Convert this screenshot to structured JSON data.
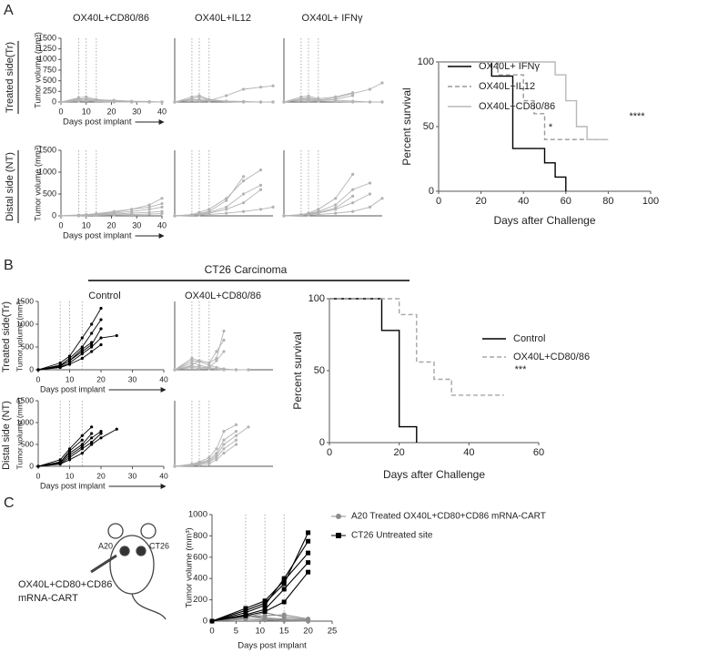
{
  "figure": {
    "panel_labels": [
      "A",
      "B",
      "C"
    ],
    "group_title": "CT26 Carcinoma",
    "row_labels": [
      "Treated side(Tr)",
      "Distal side (NT)",
      "Treated side(Tr)",
      "Distal side (NT)"
    ],
    "cartoon_labels": [
      "A20",
      "CT26",
      "OX40L+CD80+CD86",
      "mRNA-CART"
    ]
  },
  "chart_data": [
    {
      "type": "line",
      "title": "OX40L+CD80/86",
      "ylabel": "Tumor volume (mm³)",
      "xlabel": "Days post implant",
      "x": [
        0,
        7,
        10,
        14,
        21,
        28,
        35,
        40
      ],
      "xlim": [
        0,
        40
      ],
      "ylim": [
        0,
        1500
      ],
      "xticks": [
        0,
        10,
        20,
        30,
        40
      ],
      "yticks": [
        0,
        250,
        500,
        750,
        1000,
        1250,
        1500
      ],
      "vlines": [
        7,
        10,
        14
      ],
      "series": [
        {
          "color": "#b3b3b3",
          "marker": "circle",
          "values": [
            [
              0,
              60,
              80,
              50,
              40,
              20,
              10,
              0
            ],
            [
              0,
              100,
              120,
              60,
              30,
              10,
              0,
              0
            ],
            [
              0,
              40,
              50,
              30,
              20,
              10,
              0,
              0
            ],
            [
              0,
              80,
              70,
              40,
              20,
              0,
              0,
              0
            ],
            [
              0,
              20,
              30,
              10,
              0,
              0,
              0,
              0
            ]
          ]
        }
      ]
    },
    {
      "type": "line",
      "title": "OX40L+IL12",
      "x": [
        0,
        7,
        10,
        14,
        21,
        28,
        35,
        40
      ],
      "xlim": [
        0,
        40
      ],
      "ylim": [
        0,
        1500
      ],
      "vlines": [
        7,
        10,
        14
      ],
      "series": [
        {
          "color": "#b3b3b3",
          "marker": "circle",
          "values": [
            [
              0,
              80,
              120,
              40,
              10,
              0,
              0,
              0
            ],
            [
              0,
              120,
              150,
              60,
              20,
              10,
              0,
              0
            ],
            [
              0,
              50,
              60,
              30,
              150,
              300,
              350,
              380
            ],
            [
              0,
              40,
              30,
              20,
              10,
              0,
              0,
              0
            ],
            [
              0,
              60,
              50,
              40,
              20,
              10,
              null,
              null
            ]
          ]
        }
      ]
    },
    {
      "type": "line",
      "title": "OX40L+ IFNγ",
      "x": [
        0,
        7,
        10,
        14,
        21,
        28,
        35,
        40
      ],
      "xlim": [
        0,
        40
      ],
      "ylim": [
        0,
        1500
      ],
      "vlines": [
        7,
        10,
        14
      ],
      "series": [
        {
          "color": "#b3b3b3",
          "marker": "circle",
          "values": [
            [
              0,
              60,
              80,
              40,
              100,
              200,
              300,
              450
            ],
            [
              0,
              120,
              140,
              80,
              120,
              220,
              null,
              null
            ],
            [
              0,
              40,
              30,
              20,
              10,
              0,
              0,
              0
            ],
            [
              0,
              80,
              100,
              60,
              40,
              20,
              0,
              0
            ],
            [
              0,
              50,
              60,
              30,
              60,
              150,
              null,
              null
            ]
          ]
        }
      ]
    },
    {
      "type": "line",
      "ylabel": "Tumor volume (mm³)",
      "xlabel": "Days post implant",
      "x": [
        0,
        7,
        10,
        14,
        21,
        28,
        35,
        40
      ],
      "xlim": [
        0,
        40
      ],
      "ylim": [
        0,
        1500
      ],
      "xticks": [
        0,
        10,
        20,
        30,
        40
      ],
      "yticks": [
        0,
        500,
        1000,
        1500
      ],
      "vlines": [
        7,
        10,
        14
      ],
      "series": [
        {
          "color": "#b3b3b3",
          "marker": "circle",
          "values": [
            [
              0,
              10,
              20,
              40,
              80,
              150,
              250,
              400
            ],
            [
              0,
              20,
              30,
              50,
              100,
              150,
              200,
              280
            ],
            [
              0,
              10,
              20,
              30,
              60,
              100,
              150,
              200
            ],
            [
              0,
              10,
              10,
              20,
              40,
              60,
              80,
              100
            ],
            [
              0,
              0,
              10,
              10,
              20,
              30,
              40,
              50
            ]
          ]
        }
      ]
    },
    {
      "type": "line",
      "x": [
        0,
        7,
        10,
        14,
        21,
        28,
        35,
        40
      ],
      "xlim": [
        0,
        40
      ],
      "ylim": [
        0,
        1500
      ],
      "vlines": [
        7,
        10,
        14
      ],
      "series": [
        {
          "color": "#b3b3b3",
          "marker": "circle",
          "values": [
            [
              0,
              20,
              50,
              100,
              350,
              900,
              null,
              null
            ],
            [
              0,
              30,
              80,
              150,
              400,
              800,
              1050,
              null
            ],
            [
              0,
              20,
              40,
              80,
              200,
              500,
              700,
              null
            ],
            [
              0,
              10,
              30,
              60,
              150,
              300,
              600,
              null
            ],
            [
              0,
              10,
              20,
              30,
              60,
              100,
              150,
              200
            ]
          ]
        }
      ]
    },
    {
      "type": "line",
      "x": [
        0,
        7,
        10,
        14,
        21,
        28,
        35,
        40
      ],
      "xlim": [
        0,
        40
      ],
      "ylim": [
        0,
        1500
      ],
      "vlines": [
        7,
        10,
        14
      ],
      "series": [
        {
          "color": "#b3b3b3",
          "marker": "circle",
          "values": [
            [
              0,
              30,
              60,
              150,
              400,
              950,
              null,
              null
            ],
            [
              0,
              20,
              50,
              100,
              250,
              600,
              750,
              null
            ],
            [
              0,
              20,
              40,
              80,
              180,
              450,
              null,
              null
            ],
            [
              0,
              10,
              30,
              60,
              150,
              300,
              500,
              null
            ],
            [
              0,
              10,
              20,
              30,
              60,
              100,
              200,
              400
            ]
          ]
        }
      ]
    },
    {
      "type": "step",
      "xlabel": "Days after Challenge",
      "ylabel": "Percent survival",
      "xlim": [
        0,
        100
      ],
      "ylim": [
        0,
        100
      ],
      "xticks": [
        0,
        20,
        40,
        60,
        80,
        100
      ],
      "yticks": [
        0,
        50,
        100
      ],
      "series": [
        {
          "name": "OX40L+ IFNγ",
          "color": "#000000",
          "dash": false,
          "x": [
            0,
            25,
            35,
            50,
            55,
            60
          ],
          "values": [
            100,
            89,
            33,
            22,
            11,
            0
          ]
        },
        {
          "name": "OX40L+IL12",
          "color": "#999999",
          "dash": true,
          "x": [
            0,
            28,
            40,
            45,
            50,
            80
          ],
          "values": [
            100,
            90,
            70,
            60,
            40,
            40
          ]
        },
        {
          "name": "OX40L+CD80/86",
          "color": "#b8b8b8",
          "dash": false,
          "x": [
            0,
            55,
            60,
            65,
            70,
            80
          ],
          "values": [
            100,
            90,
            70,
            50,
            40,
            40
          ]
        }
      ],
      "annotations": [
        "*",
        "****"
      ]
    },
    {
      "type": "line",
      "title": "Control",
      "ylabel": "Tumor volume (mm³)",
      "xlabel": "Days post implant",
      "x": [
        0,
        7,
        10,
        14,
        17,
        20,
        25,
        30
      ],
      "xlim": [
        0,
        40
      ],
      "ylim": [
        0,
        1500
      ],
      "xticks": [
        0,
        10,
        20,
        30,
        40
      ],
      "yticks": [
        0,
        500,
        1000,
        1500
      ],
      "vlines": [
        7,
        10,
        14
      ],
      "series": [
        {
          "color": "#000000",
          "marker": "circle",
          "values": [
            [
              0,
              150,
              300,
              700,
              1000,
              1350,
              null,
              null
            ],
            [
              0,
              100,
              250,
              500,
              800,
              1100,
              null,
              null
            ],
            [
              0,
              80,
              200,
              400,
              550,
              900,
              null,
              null
            ],
            [
              0,
              60,
              150,
              350,
              500,
              700,
              750,
              null
            ],
            [
              0,
              50,
              120,
              250,
              400,
              550,
              null,
              null
            ],
            [
              0,
              90,
              200,
              450,
              600,
              null,
              null,
              null
            ]
          ]
        }
      ]
    },
    {
      "type": "line",
      "title": "OX40L+CD80/86",
      "x": [
        0,
        7,
        10,
        14,
        17,
        20,
        25,
        30
      ],
      "xlim": [
        0,
        40
      ],
      "ylim": [
        0,
        1500
      ],
      "vlines": [
        7,
        10,
        14
      ],
      "series": [
        {
          "color": "#b3b3b3",
          "marker": "circle",
          "values": [
            [
              0,
              250,
              200,
              150,
              250,
              850,
              null,
              null
            ],
            [
              0,
              150,
              100,
              50,
              20,
              0,
              0,
              0
            ],
            [
              0,
              100,
              200,
              150,
              400,
              650,
              null,
              null
            ],
            [
              0,
              50,
              30,
              20,
              10,
              0,
              0,
              0
            ],
            [
              0,
              200,
              180,
              100,
              50,
              20,
              0,
              0
            ],
            [
              0,
              80,
              60,
              40,
              200,
              400,
              null,
              null
            ]
          ]
        }
      ]
    },
    {
      "type": "line",
      "ylabel": "Tumor volume (mm³)",
      "xlabel": "Days post implant",
      "x": [
        0,
        7,
        10,
        14,
        17,
        20,
        25,
        30
      ],
      "xlim": [
        0,
        40
      ],
      "ylim": [
        0,
        1500
      ],
      "xticks": [
        0,
        10,
        20,
        30,
        40
      ],
      "yticks": [
        0,
        500,
        1000,
        1500
      ],
      "vlines": [
        7,
        10,
        14
      ],
      "series": [
        {
          "color": "#000000",
          "marker": "circle",
          "values": [
            [
              0,
              150,
              400,
              700,
              900,
              null,
              null,
              null
            ],
            [
              0,
              100,
              300,
              500,
              750,
              null,
              null,
              null
            ],
            [
              0,
              80,
              250,
              450,
              650,
              800,
              null,
              null
            ],
            [
              0,
              60,
              200,
              400,
              550,
              750,
              null,
              null
            ],
            [
              0,
              50,
              150,
              300,
              500,
              650,
              850,
              null
            ],
            [
              0,
              90,
              350,
              600,
              null,
              null,
              null,
              null
            ]
          ]
        }
      ]
    },
    {
      "type": "line",
      "x": [
        0,
        7,
        10,
        14,
        17,
        20,
        25,
        30
      ],
      "xlim": [
        0,
        40
      ],
      "ylim": [
        0,
        1500
      ],
      "vlines": [
        7,
        10,
        14
      ],
      "series": [
        {
          "color": "#b3b3b3",
          "marker": "circle",
          "values": [
            [
              0,
              50,
              100,
              200,
              400,
              800,
              950,
              null
            ],
            [
              0,
              30,
              80,
              150,
              300,
              600,
              800,
              null
            ],
            [
              0,
              20,
              60,
              120,
              250,
              500,
              700,
              900
            ],
            [
              0,
              20,
              50,
              100,
              200,
              400,
              600,
              null
            ],
            [
              0,
              10,
              30,
              60,
              150,
              300,
              500,
              null
            ]
          ]
        }
      ]
    },
    {
      "type": "step",
      "xlabel": "Days after Challenge",
      "ylabel": "Percent survival",
      "xlim": [
        0,
        60
      ],
      "ylim": [
        0,
        100
      ],
      "xticks": [
        0,
        20,
        40,
        60
      ],
      "yticks": [
        0,
        50,
        100
      ],
      "series": [
        {
          "name": "Control",
          "color": "#000000",
          "dash": false,
          "x": [
            0,
            15,
            20,
            25
          ],
          "values": [
            100,
            78,
            11,
            0
          ]
        },
        {
          "name": "OX40L+CD80/86",
          "color": "#a6a6a6",
          "dash": true,
          "x": [
            0,
            20,
            25,
            30,
            35,
            50
          ],
          "values": [
            100,
            89,
            56,
            44,
            33,
            33
          ]
        }
      ],
      "annotations": [
        "***"
      ]
    },
    {
      "type": "line",
      "ylabel": "Tumor volume (mm³)",
      "xlabel": "Days post implant",
      "x": [
        0,
        7,
        11,
        15,
        20
      ],
      "xlim": [
        0,
        25
      ],
      "ylim": [
        0,
        1000
      ],
      "xticks": [
        0,
        5,
        10,
        15,
        20,
        25
      ],
      "yticks": [
        0,
        200,
        400,
        600,
        800,
        1000
      ],
      "vlines": [
        7,
        11,
        15
      ],
      "series": [
        {
          "name": "A20 Treated OX40L+CD80+CD86 mRNA-CART",
          "color": "#8c8c8c",
          "marker": "circle",
          "values": [
            [
              0,
              50,
              20,
              10,
              0
            ],
            [
              0,
              60,
              30,
              20,
              5
            ],
            [
              0,
              30,
              80,
              40,
              10
            ],
            [
              0,
              40,
              50,
              60,
              20
            ],
            [
              0,
              20,
              10,
              5,
              0
            ]
          ]
        },
        {
          "name": "CT26 Untreated site",
          "color": "#000000",
          "marker": "square",
          "values": [
            [
              0,
              100,
              170,
              350,
              830
            ],
            [
              0,
              80,
              150,
              400,
              750
            ],
            [
              0,
              120,
              190,
              380,
              640
            ],
            [
              0,
              60,
              110,
              300,
              550
            ],
            [
              0,
              50,
              90,
              180,
              460
            ]
          ]
        }
      ]
    }
  ]
}
